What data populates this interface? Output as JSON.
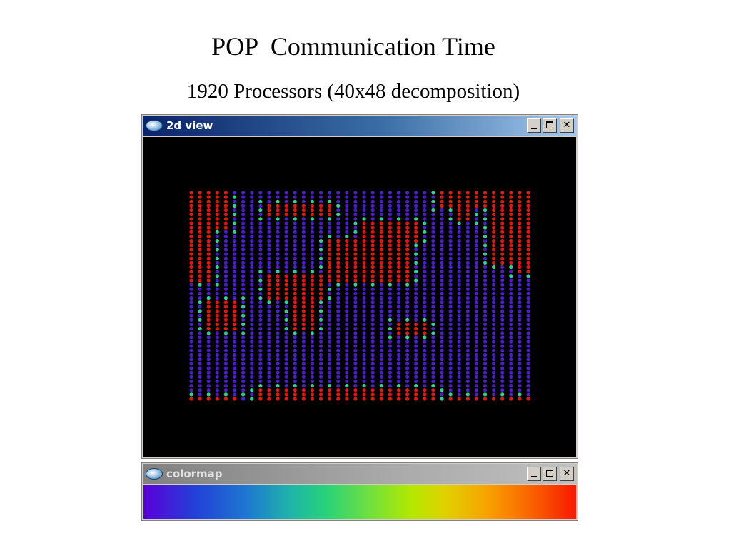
{
  "slide": {
    "title": "POP  Communication Time",
    "subtitle": "1920 Processors (40x48 decomposition)"
  },
  "windows": {
    "view": {
      "title": "2d view"
    },
    "colormap": {
      "title": "colormap"
    }
  },
  "grid": {
    "columns": 40,
    "rows": 48,
    "colors": {
      "low": "#4a1fc8",
      "mid": "#2fd39a",
      "high": "#e01810"
    },
    "bands": [
      {
        "columns": [
          0,
          2
        ],
        "rows": [
          0,
          20
        ],
        "level": "high"
      },
      {
        "columns": [
          3,
          4
        ],
        "rows": [
          0,
          8
        ],
        "level": "high"
      },
      {
        "columns": [
          29,
          34
        ],
        "rows": [
          0,
          3
        ],
        "level": "high"
      },
      {
        "columns": [
          31,
          32
        ],
        "rows": [
          0,
          6
        ],
        "level": "high"
      },
      {
        "columns": [
          35,
          37
        ],
        "rows": [
          0,
          16
        ],
        "level": "high"
      },
      {
        "columns": [
          38,
          39
        ],
        "rows": [
          0,
          18
        ],
        "level": "high"
      },
      {
        "columns": [
          9,
          16
        ],
        "rows": [
          3,
          5
        ],
        "level": "high"
      },
      {
        "columns": [
          16,
          25
        ],
        "rows": [
          11,
          20
        ],
        "level": "high"
      },
      {
        "columns": [
          20,
          26
        ],
        "rows": [
          7,
          11
        ],
        "level": "high"
      },
      {
        "columns": [
          9,
          15
        ],
        "rows": [
          19,
          24
        ],
        "level": "high"
      },
      {
        "columns": [
          12,
          14
        ],
        "rows": [
          24,
          31
        ],
        "level": "high"
      },
      {
        "columns": [
          2,
          5
        ],
        "rows": [
          25,
          31
        ],
        "level": "high"
      },
      {
        "columns": [
          24,
          27
        ],
        "rows": [
          30,
          32
        ],
        "level": "high"
      },
      {
        "columns": [
          8,
          28
        ],
        "rows": [
          45,
          47
        ],
        "level": "high"
      },
      {
        "columns": [
          0,
          5
        ],
        "rows": [
          47,
          47
        ],
        "level": "high"
      },
      {
        "columns": [
          30,
          39
        ],
        "rows": [
          47,
          47
        ],
        "level": "high"
      }
    ]
  },
  "colormap": {
    "stops": [
      "#5a00d8",
      "#2340d8",
      "#1e78d0",
      "#1fb4a8",
      "#26d27a",
      "#6ee040",
      "#b4e800",
      "#e0d000",
      "#f8a000",
      "#fa6000",
      "#f81800"
    ]
  }
}
